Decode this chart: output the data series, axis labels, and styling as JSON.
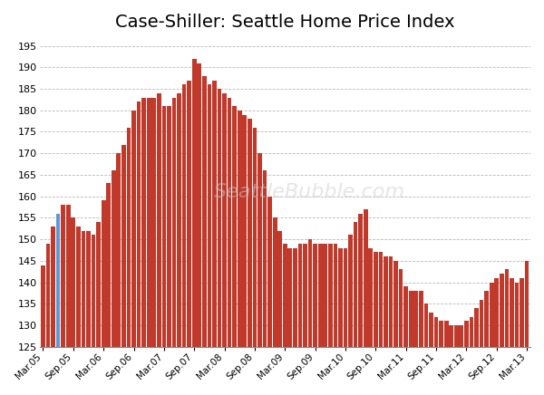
{
  "title": "Case-Shiller: Seattle Home Price Index",
  "title_fontsize": 14,
  "bar_color": "#c0392b",
  "highlight_color": "#5b9bd5",
  "highlight_index": 3,
  "background_color": "#ffffff",
  "grid_color": "#999999",
  "ylim": [
    125,
    197
  ],
  "ybase": 125,
  "yticks": [
    125,
    130,
    135,
    140,
    145,
    150,
    155,
    160,
    165,
    170,
    175,
    180,
    185,
    190,
    195
  ],
  "xtick_labels": [
    "Mar-05",
    "Sep-05",
    "Mar-06",
    "Sep-06",
    "Mar-07",
    "Sep-07",
    "Mar-08",
    "Sep-08",
    "Mar-09",
    "Sep-09",
    "Mar-10",
    "Sep-10",
    "Mar-11",
    "Sep-11",
    "Mar-12",
    "Sep-12",
    "Mar-13"
  ],
  "xtick_positions": [
    0,
    6,
    12,
    18,
    24,
    30,
    36,
    42,
    48,
    54,
    60,
    66,
    72,
    78,
    84,
    90,
    96
  ],
  "values": [
    144,
    149,
    153,
    156,
    158,
    158,
    155,
    153,
    152,
    152,
    151,
    154,
    159,
    163,
    166,
    170,
    172,
    176,
    180,
    182,
    183,
    183,
    183,
    184,
    181,
    181,
    183,
    184,
    186,
    187,
    192,
    191,
    188,
    186,
    187,
    185,
    184,
    183,
    181,
    180,
    179,
    178,
    176,
    170,
    166,
    160,
    155,
    152,
    149,
    148,
    148,
    149,
    149,
    150,
    149,
    149,
    149,
    149,
    149,
    148,
    148,
    151,
    154,
    156,
    157,
    148,
    147,
    147,
    146,
    146,
    145,
    143,
    139,
    138,
    138,
    138,
    135,
    133,
    132,
    131,
    131,
    130,
    130,
    130,
    131,
    132,
    134,
    136,
    138,
    140,
    141,
    142,
    143,
    141,
    140,
    141,
    145
  ]
}
